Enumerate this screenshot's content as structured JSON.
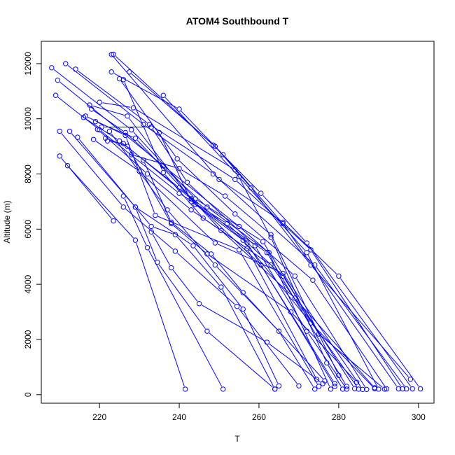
{
  "chart_data": {
    "type": "line",
    "title": "ATOM4 Southbound T",
    "xlabel": "T",
    "ylabel": "Altitude (m)",
    "xlim": [
      205.4,
      303.9
    ],
    "ylim": [
      -310,
      12810
    ],
    "xticks": [
      220,
      240,
      260,
      280,
      300
    ],
    "yticks": [
      0,
      2000,
      4000,
      6000,
      8000,
      10000,
      12000
    ],
    "grid": false,
    "legend": "none",
    "series_color": "#0000ff",
    "marker": "open-circle",
    "series": [
      {
        "points": [
          [
            223.0,
            12330
          ],
          [
            250,
            7800
          ],
          [
            266,
            6250
          ],
          [
            280,
            4300
          ],
          [
            300.5,
            210
          ]
        ]
      },
      {
        "points": [
          [
            223.5,
            12340
          ],
          [
            248.5,
            9050
          ],
          [
            260.5,
            7300
          ],
          [
            272,
            5500
          ],
          [
            298.5,
            210
          ]
        ]
      },
      {
        "points": [
          [
            211.5,
            12000
          ],
          [
            231,
            9800
          ],
          [
            248.5,
            8000
          ],
          [
            274,
            4700
          ],
          [
            297,
            210
          ]
        ]
      },
      {
        "points": [
          [
            208,
            11850
          ],
          [
            228,
            9600
          ],
          [
            244,
            7100
          ],
          [
            261,
            5550
          ],
          [
            275,
            2200
          ],
          [
            291.5,
            200
          ]
        ]
      },
      {
        "points": [
          [
            214,
            11800
          ],
          [
            232.5,
            9800
          ],
          [
            254,
            7800
          ],
          [
            273,
            5250
          ],
          [
            296,
            210
          ]
        ]
      },
      {
        "points": [
          [
            209.5,
            11400
          ],
          [
            236,
            8300
          ],
          [
            255,
            6100
          ],
          [
            269,
            4300
          ],
          [
            287,
            190
          ]
        ]
      },
      {
        "points": [
          [
            227.5,
            11700
          ],
          [
            249,
            9000
          ],
          [
            258,
            7500
          ],
          [
            273,
            4700
          ],
          [
            298,
            560
          ]
        ]
      },
      {
        "points": [
          [
            223,
            11700
          ],
          [
            240,
            10350
          ],
          [
            251,
            8700
          ],
          [
            266,
            6200
          ],
          [
            295,
            210
          ]
        ]
      },
      {
        "points": [
          [
            225,
            11450
          ],
          [
            239.5,
            8550
          ],
          [
            254,
            6550
          ],
          [
            273.5,
            4150
          ],
          [
            292,
            210
          ]
        ]
      },
      {
        "points": [
          [
            226,
            11420
          ],
          [
            236,
            8050
          ],
          [
            246,
            6400
          ],
          [
            263,
            4700
          ],
          [
            285,
            200
          ]
        ]
      },
      {
        "points": [
          [
            209,
            10850
          ],
          [
            220,
            9600
          ],
          [
            240,
            7300
          ],
          [
            252,
            6200
          ],
          [
            266,
            4300
          ],
          [
            284,
            220
          ]
        ]
      },
      {
        "points": [
          [
            236,
            10850
          ],
          [
            255,
            7900
          ],
          [
            272,
            5150
          ],
          [
            290,
            200
          ]
        ]
      },
      {
        "points": [
          [
            220,
            10600
          ],
          [
            228.5,
            10400
          ],
          [
            254,
            8150
          ],
          [
            263,
            5700
          ],
          [
            277,
            1150
          ],
          [
            281,
            200
          ]
        ]
      },
      {
        "points": [
          [
            216,
            10050
          ],
          [
            225,
            9200
          ],
          [
            240,
            7500
          ],
          [
            257,
            5500
          ],
          [
            279,
            400
          ]
        ]
      },
      {
        "points": [
          [
            217.5,
            10500
          ],
          [
            227,
            10100
          ],
          [
            244,
            6900
          ],
          [
            262,
            5150
          ],
          [
            282,
            300
          ]
        ]
      },
      {
        "points": [
          [
            218,
            10350
          ],
          [
            226.5,
            9500
          ],
          [
            247,
            6800
          ],
          [
            262.5,
            5150
          ],
          [
            278,
            200
          ]
        ]
      },
      {
        "points": [
          [
            216.5,
            10100
          ],
          [
            226.5,
            9400
          ],
          [
            234,
            6500
          ],
          [
            255,
            5250
          ],
          [
            275,
            300
          ]
        ]
      },
      {
        "points": [
          [
            219,
            9900
          ],
          [
            229,
            9300
          ],
          [
            250.5,
            5950
          ],
          [
            269,
            3500
          ],
          [
            289,
            250
          ]
        ]
      },
      {
        "points": [
          [
            219.5,
            9620
          ],
          [
            232,
            8000
          ],
          [
            243,
            6700
          ],
          [
            257,
            5300
          ],
          [
            274.5,
            550
          ]
        ]
      },
      {
        "points": [
          [
            218.5,
            9250
          ],
          [
            230,
            8100
          ],
          [
            249,
            5500
          ],
          [
            266,
            4400
          ],
          [
            286,
            190
          ]
        ]
      },
      {
        "points": [
          [
            220.5,
            9700
          ],
          [
            233,
            9700
          ],
          [
            242,
            7700
          ],
          [
            259,
            5400
          ],
          [
            272,
            2300
          ],
          [
            282,
            200
          ]
        ]
      },
      {
        "points": [
          [
            222.5,
            9550
          ],
          [
            237,
            6700
          ],
          [
            249,
            4700
          ],
          [
            265,
            2300
          ],
          [
            274,
            200
          ]
        ]
      },
      {
        "points": [
          [
            222,
            9200
          ],
          [
            226,
            9100
          ],
          [
            243,
            7100
          ],
          [
            260.5,
            4700
          ],
          [
            279,
            300
          ]
        ]
      },
      {
        "points": [
          [
            221.5,
            9300
          ],
          [
            227,
            9000
          ],
          [
            238,
            6200
          ],
          [
            247,
            5100
          ],
          [
            268,
            3000
          ],
          [
            284.5,
            450
          ]
        ]
      },
      {
        "points": [
          [
            210,
            9550
          ],
          [
            226,
            6800
          ],
          [
            239,
            5200
          ],
          [
            254.5,
            3200
          ],
          [
            270,
            320
          ]
        ]
      },
      {
        "points": [
          [
            212.5,
            9550
          ],
          [
            229,
            6800
          ],
          [
            243.5,
            5400
          ],
          [
            256,
            3100
          ],
          [
            265,
            320
          ]
        ]
      },
      {
        "points": [
          [
            214.5,
            9330
          ],
          [
            233,
            6100
          ],
          [
            239,
            5800
          ],
          [
            250.5,
            3900
          ],
          [
            264,
            200
          ]
        ]
      },
      {
        "points": [
          [
            235,
            9500
          ],
          [
            243,
            7000
          ],
          [
            256,
            5600
          ],
          [
            273,
            2600
          ],
          [
            289,
            220
          ]
        ]
      },
      {
        "points": [
          [
            228,
            8700
          ],
          [
            240,
            8200
          ],
          [
            251.5,
            7200
          ],
          [
            263,
            5800
          ],
          [
            280,
            700
          ]
        ]
      },
      {
        "points": [
          [
            231,
            8500
          ],
          [
            238,
            6250
          ],
          [
            248,
            5100
          ],
          [
            256,
            3700
          ],
          [
            276.5,
            500
          ]
        ]
      },
      {
        "points": [
          [
            210,
            8650
          ],
          [
            223.5,
            6300
          ]
        ]
      },
      {
        "points": [
          [
            212,
            8300
          ],
          [
            229,
            5600
          ],
          [
            241.5,
            200
          ]
        ]
      },
      {
        "points": [
          [
            226,
            7200
          ],
          [
            232,
            5330
          ],
          [
            251,
            200
          ]
        ]
      },
      {
        "points": [
          [
            229,
            6800
          ],
          [
            234.5,
            4800
          ],
          [
            247,
            2300
          ],
          [
            264,
            200
          ]
        ]
      },
      {
        "points": [
          [
            233,
            5900
          ],
          [
            238,
            4600
          ],
          [
            245,
            3300
          ],
          [
            262,
            1900
          ],
          [
            276,
            400
          ]
        ]
      }
    ]
  }
}
